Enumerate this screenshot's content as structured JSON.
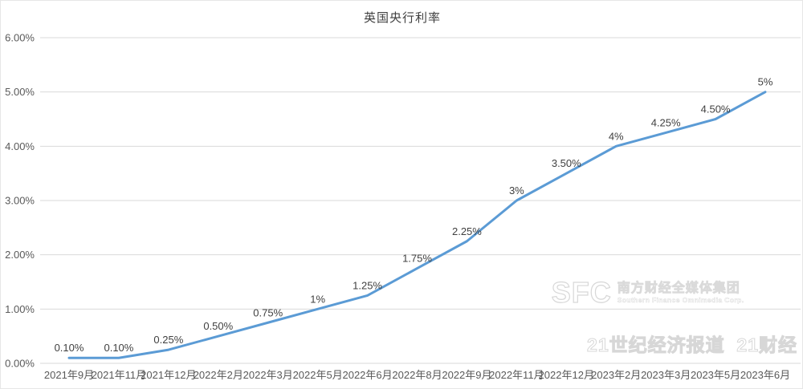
{
  "chart_data": {
    "type": "line",
    "title": "英国央行利率",
    "categories": [
      "2021年9月",
      "2021年11月",
      "2021年12月",
      "2022年2月",
      "2022年3月",
      "2022年5月",
      "2022年6月",
      "2022年8月",
      "2022年9月",
      "2022年11月",
      "2022年12月",
      "2023年2月",
      "2023年3月",
      "2023年5月",
      "2023年6月"
    ],
    "values": [
      0.1,
      0.1,
      0.25,
      0.5,
      0.75,
      1.0,
      1.25,
      1.75,
      2.25,
      3.0,
      3.5,
      4.0,
      4.25,
      4.5,
      5.0
    ],
    "point_labels": [
      "0.10%",
      "0.10%",
      "0.25%",
      "0.50%",
      "0.75%",
      "1%",
      "1.25%",
      "1.75%",
      "2.25%",
      "3%",
      "3.50%",
      "4%",
      "4.25%",
      "4.50%",
      "5%"
    ],
    "xlabel": "",
    "ylabel": "",
    "y_ticks": [
      "0.00%",
      "1.00%",
      "2.00%",
      "3.00%",
      "4.00%",
      "5.00%",
      "6.00%"
    ],
    "ylim": [
      0,
      6
    ],
    "grid": true,
    "legend": "none",
    "line_color": "#5B9BD5",
    "grid_color": "#d9d9d9",
    "tick_color": "#595959",
    "label_color": "#404040"
  },
  "watermark": {
    "logo": "SFC",
    "company_cn": "南方财经全媒体集团",
    "company_en": "Southern Finance Omnimedia Corp.",
    "brands": "21世纪经济报道  21财经"
  }
}
